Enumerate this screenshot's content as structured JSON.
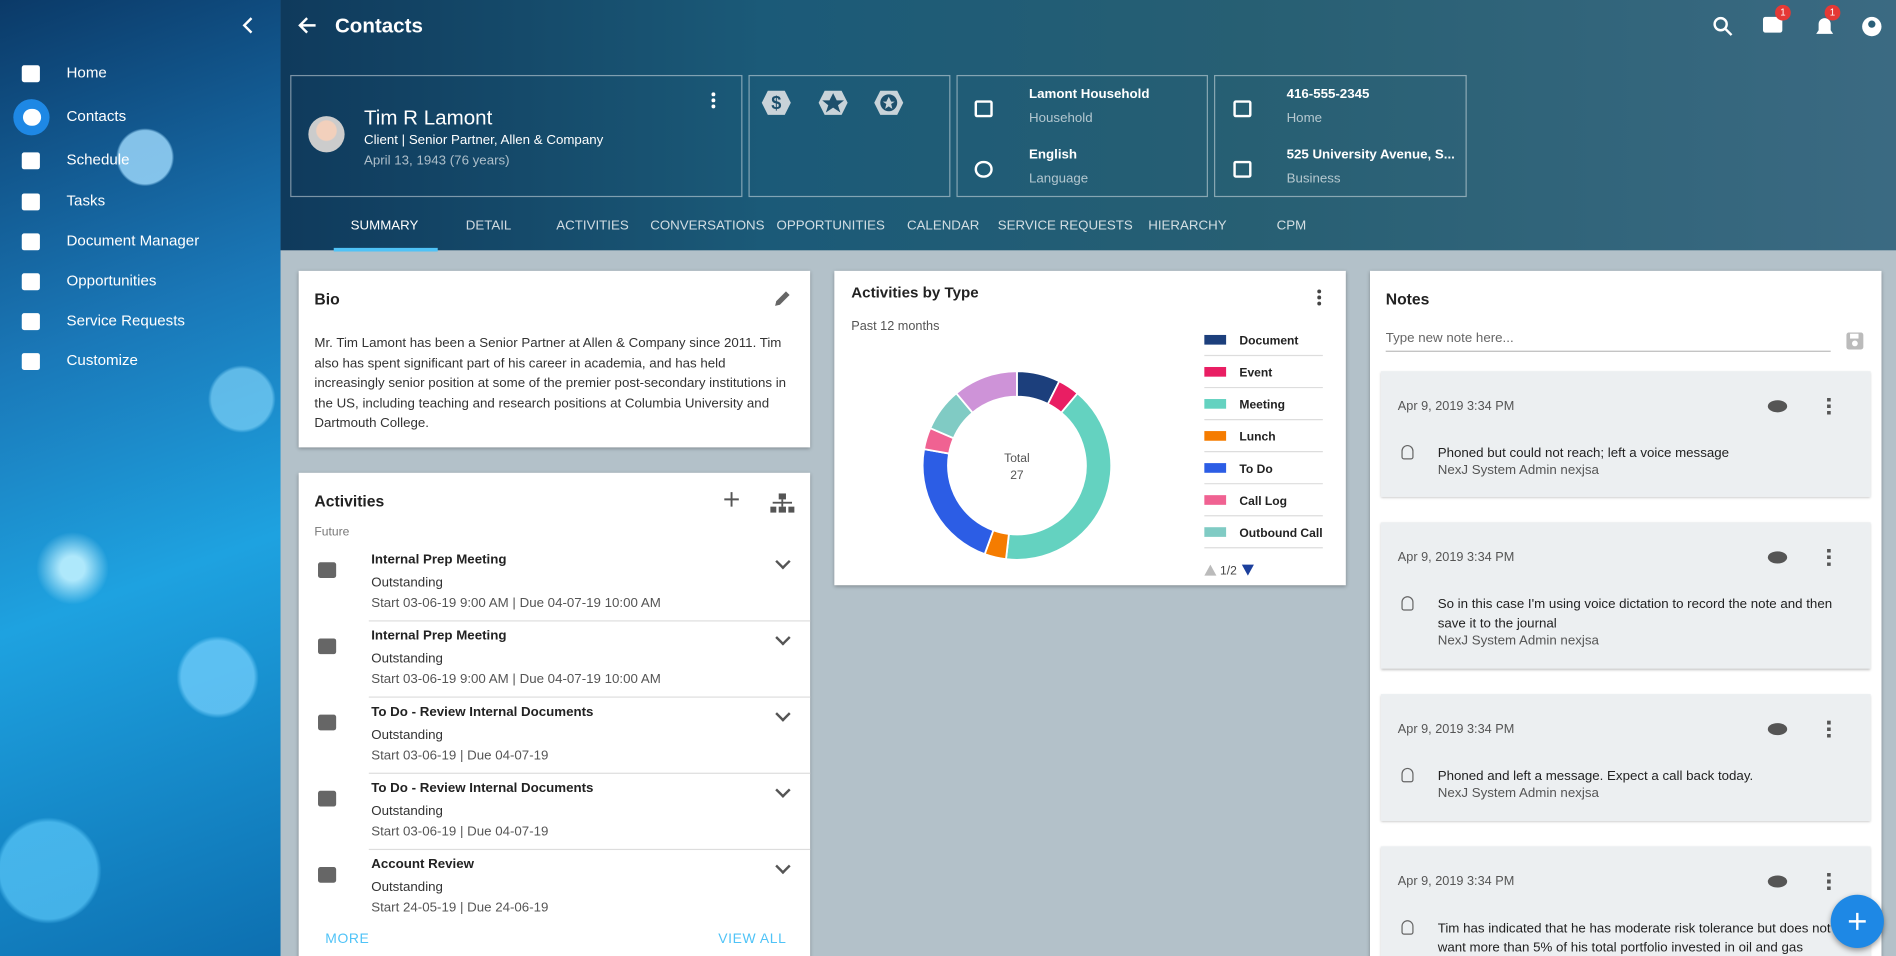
{
  "sidebar": {
    "items": [
      "Home",
      "Contacts",
      "Schedule",
      "Tasks",
      "Document Manager",
      "Opportunities",
      "Service Requests",
      "Customize"
    ]
  },
  "header": {
    "title": "Contacts",
    "chat_badge": 1,
    "alert_badge": 1
  },
  "contact": {
    "name": "Tim R Lamont",
    "role": "Client | Senior Partner, Allen & Company",
    "dob": "April 13, 1943 (76 years)"
  },
  "info": [
    {
      "value": "Lamont Household",
      "label": "Household"
    },
    {
      "value": "English",
      "label": "Language"
    },
    {
      "value": "416-555-2345",
      "label": "Home"
    },
    {
      "value": "525 University Avenue, S...",
      "label": "Business"
    }
  ],
  "tabs": [
    "SUMMARY",
    "DETAIL",
    "ACTIVITIES",
    "CONVERSATIONS",
    "OPPORTUNITIES",
    "CALENDAR",
    "SERVICE REQUESTS",
    "HIERARCHY",
    "CPM"
  ],
  "bio": {
    "title": "Bio",
    "text": "Mr. Tim Lamont has been a Senior Partner at Allen & Company since 2011. Tim also has spent significant part of his career in academia, and has held increasingly senior position at some of the premier post-secondary institutions in the US, including teaching and research positions at Columbia University and Dartmouth College."
  },
  "activities": {
    "title": "Activities",
    "group": "Future",
    "items": [
      {
        "title": "Internal Prep Meeting",
        "status": "Outstanding",
        "dates": "Start 03-06-19 9:00 AM | Due 04-07-19 10:00 AM"
      },
      {
        "title": "Internal Prep Meeting",
        "status": "Outstanding",
        "dates": "Start 03-06-19 9:00 AM | Due 04-07-19 10:00 AM"
      },
      {
        "title": "To Do - Review Internal Documents",
        "status": "Outstanding",
        "dates": "Start 03-06-19 | Due 04-07-19"
      },
      {
        "title": "To Do - Review Internal Documents",
        "status": "Outstanding",
        "dates": "Start 03-06-19 | Due 04-07-19"
      },
      {
        "title": "Account Review",
        "status": "Outstanding",
        "dates": "Start 24-05-19 | Due 24-06-19"
      }
    ],
    "more": "MORE",
    "view_all": "VIEW ALL"
  },
  "chart_data": {
    "type": "pie",
    "title": "Activities by Type",
    "subtitle": "Past 12 months",
    "center_label": "Total",
    "total": 27,
    "categories": [
      "Document",
      "Event",
      "Meeting",
      "Lunch",
      "To Do",
      "Call Log",
      "Outbound Call",
      null
    ],
    "values": [
      2,
      1,
      11,
      1,
      6,
      1,
      2,
      3
    ],
    "colors": [
      "#1c3f7c",
      "#e91e63",
      "#64d2c0",
      "#f57c00",
      "#2c5de5",
      "#f06292",
      "#80cbc4",
      "#ce93d8"
    ],
    "legend_page": "1/2"
  },
  "notes": {
    "title": "Notes",
    "placeholder": "Type new note here...",
    "items": [
      {
        "date": "Apr 9, 2019 3:34 PM",
        "text": "Phoned but could not reach; left a voice message",
        "author": "NexJ System Admin nexjsa"
      },
      {
        "date": "Apr 9, 2019 3:34 PM",
        "text": "So in this case I'm using voice dictation to record the note and then save it to the journal",
        "author": "NexJ System Admin nexjsa"
      },
      {
        "date": "Apr 9, 2019 3:34 PM",
        "text": "Phoned and left a message. Expect a call back today.",
        "author": "NexJ System Admin nexjsa"
      },
      {
        "date": "Apr 9, 2019 3:34 PM",
        "text": "Tim has indicated that he has moderate risk tolerance but does not want more than 5% of his total portfolio invested in oil and gas",
        "author": null
      }
    ]
  }
}
